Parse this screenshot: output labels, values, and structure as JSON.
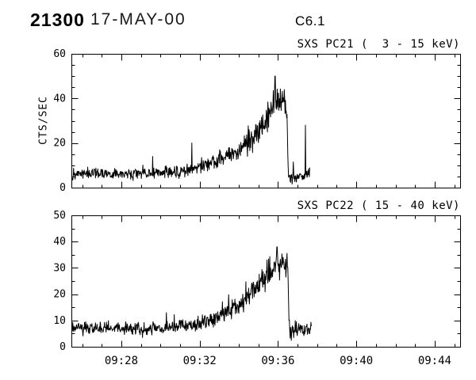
{
  "header": {
    "event_number": "21300",
    "date": "17-MAY-00",
    "goes_class": "C6.1"
  },
  "chart_data": [
    {
      "type": "line",
      "title": "SXS PC21 (  3 - 15 keV)",
      "ylabel": "CTS/SEC",
      "xlabel": "",
      "line_color": "#000000",
      "x_unit": "UT minutes after 09:00",
      "x_range": [
        25.45,
        45.3
      ],
      "x_ticks": {
        "values": [
          28,
          32,
          36,
          40,
          44
        ],
        "labels": [
          "09:28",
          "09:32",
          "09:36",
          "09:40",
          "09:44"
        ]
      },
      "x_minor_step": 1,
      "show_x_tick_labels": false,
      "ylim": [
        0,
        60
      ],
      "y_ticks": {
        "values": [
          0,
          20,
          40,
          60
        ],
        "labels": [
          "0",
          "20",
          "40",
          "60"
        ]
      },
      "y_minor_step": 5,
      "series": {
        "seed": 20000517,
        "dt": 0.02,
        "t_start": 25.5,
        "t_end": 37.62,
        "envelope": [
          [
            25.5,
            6
          ],
          [
            29,
            6.5
          ],
          [
            31,
            7
          ],
          [
            32,
            9
          ],
          [
            33,
            13
          ],
          [
            33.8,
            16
          ],
          [
            34.4,
            20
          ],
          [
            34.9,
            24
          ],
          [
            35.3,
            28
          ],
          [
            35.6,
            33
          ],
          [
            35.75,
            40
          ],
          [
            35.9,
            38
          ],
          [
            36.05,
            41
          ],
          [
            36.2,
            37
          ],
          [
            36.35,
            38
          ],
          [
            36.45,
            36
          ],
          [
            36.53,
            5
          ],
          [
            37.3,
            5
          ],
          [
            37.62,
            7
          ]
        ],
        "noise": [
          [
            25.5,
            1.7
          ],
          [
            31,
            1.9
          ],
          [
            33,
            2.5
          ],
          [
            34.5,
            3.5
          ],
          [
            35.4,
            5
          ],
          [
            36.45,
            5
          ],
          [
            36.55,
            2.2
          ],
          [
            37.62,
            2.2
          ]
        ],
        "spikes": [
          [
            29.6,
            14
          ],
          [
            31.6,
            20
          ],
          [
            35.85,
            50
          ],
          [
            37.4,
            28
          ]
        ]
      }
    },
    {
      "type": "line",
      "title": "SXS PC22 ( 15 - 40 keV)",
      "ylabel": "",
      "xlabel": "",
      "line_color": "#000000",
      "x_unit": "UT minutes after 09:00",
      "x_range": [
        25.45,
        45.3
      ],
      "x_ticks": {
        "values": [
          28,
          32,
          36,
          40,
          44
        ],
        "labels": [
          "09:28",
          "09:32",
          "09:36",
          "09:40",
          "09:44"
        ]
      },
      "x_minor_step": 1,
      "show_x_tick_labels": true,
      "ylim": [
        0,
        50
      ],
      "y_ticks": {
        "values": [
          0,
          10,
          20,
          30,
          40,
          50
        ],
        "labels": [
          "0",
          "10",
          "20",
          "30",
          "40",
          "50"
        ]
      },
      "y_minor_step": 5,
      "series": {
        "seed": 971112,
        "dt": 0.02,
        "t_start": 25.5,
        "t_end": 37.7,
        "envelope": [
          [
            25.5,
            7
          ],
          [
            30,
            7
          ],
          [
            31.5,
            8
          ],
          [
            32.5,
            10
          ],
          [
            33.5,
            14
          ],
          [
            34.3,
            18
          ],
          [
            34.9,
            22
          ],
          [
            35.4,
            26
          ],
          [
            35.8,
            30
          ],
          [
            36.1,
            32
          ],
          [
            36.35,
            31
          ],
          [
            36.5,
            29
          ],
          [
            36.6,
            6
          ],
          [
            37.1,
            6
          ],
          [
            37.7,
            7
          ]
        ],
        "noise": [
          [
            25.5,
            1.6
          ],
          [
            32,
            2
          ],
          [
            34,
            3
          ],
          [
            35.3,
            4.5
          ],
          [
            36.5,
            4.5
          ],
          [
            36.65,
            2
          ],
          [
            37.7,
            2.2
          ]
        ],
        "spikes": [
          [
            30.3,
            13
          ],
          [
            35.95,
            38
          ]
        ]
      }
    }
  ]
}
